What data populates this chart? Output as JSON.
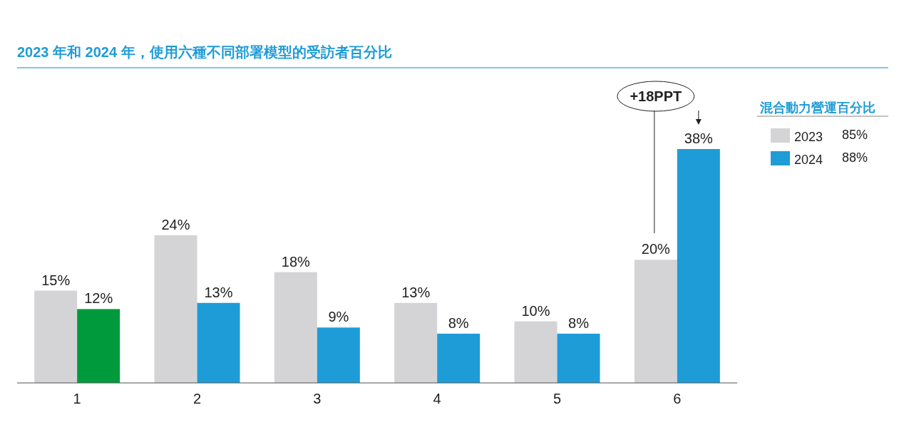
{
  "chart_data": {
    "type": "bar",
    "title": "2023 年和 2024 年，使用六種不同部署模型的受訪者百分比",
    "legend_title": "混合動力營運百分比",
    "categories": [
      "1",
      "2",
      "3",
      "4",
      "5",
      "6"
    ],
    "series": [
      {
        "name": "2023",
        "color": "#d4d4d6",
        "values": [
          15,
          24,
          18,
          13,
          10,
          20
        ],
        "value_labels": [
          "15%",
          "24%",
          "18%",
          "13%",
          "10%",
          "20%"
        ]
      },
      {
        "name": "2024",
        "color": "#1e9cd7",
        "colors": [
          "#009a3d",
          "#1e9cd7",
          "#1e9cd7",
          "#1e9cd7",
          "#1e9cd7",
          "#1e9cd7"
        ],
        "values": [
          12,
          13,
          9,
          8,
          8,
          38
        ],
        "value_labels": [
          "12%",
          "13%",
          "9%",
          "8%",
          "8%",
          "38%"
        ]
      }
    ],
    "legend": "right",
    "annotations": [
      "85%",
      "88%",
      "+18PPT"
    ]
  }
}
